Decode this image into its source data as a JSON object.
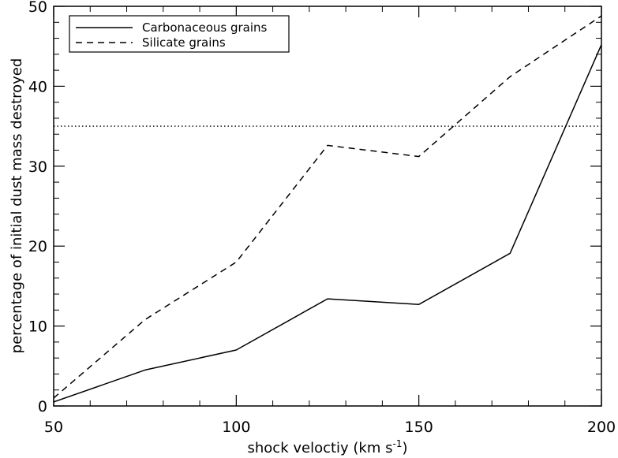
{
  "chart_data": {
    "type": "line",
    "title": "",
    "xlabel": "shock veloctiy (km s",
    "xlabel_sup": "-1",
    "xlabel_close": ")",
    "ylabel": "percentage of initial dust mass destroyed",
    "xlim": [
      50,
      200
    ],
    "ylim": [
      0,
      50
    ],
    "xticks": [
      50,
      100,
      150,
      200
    ],
    "yticks": [
      0,
      10,
      20,
      30,
      40,
      50
    ],
    "xtick_labels": [
      "50",
      "100",
      "150",
      "200"
    ],
    "ytick_labels": [
      "0",
      "10",
      "20",
      "30",
      "40",
      "50"
    ],
    "x": [
      50,
      75,
      100,
      125,
      150,
      175,
      200
    ],
    "series": [
      {
        "name": "Carbonaceous grains",
        "style": "solid",
        "values": [
          0.5,
          4.5,
          7.0,
          13.4,
          12.7,
          19.1,
          45.2
        ]
      },
      {
        "name": "Silicate grains",
        "style": "dashed",
        "values": [
          1.0,
          10.8,
          18.0,
          32.6,
          31.2,
          41.2,
          48.8
        ]
      }
    ],
    "reference_line": {
      "y": 35,
      "style": "dotted"
    },
    "legend_position": "top-left",
    "grid": false
  },
  "colors": {
    "line": "#000000",
    "background": "#ffffff"
  }
}
